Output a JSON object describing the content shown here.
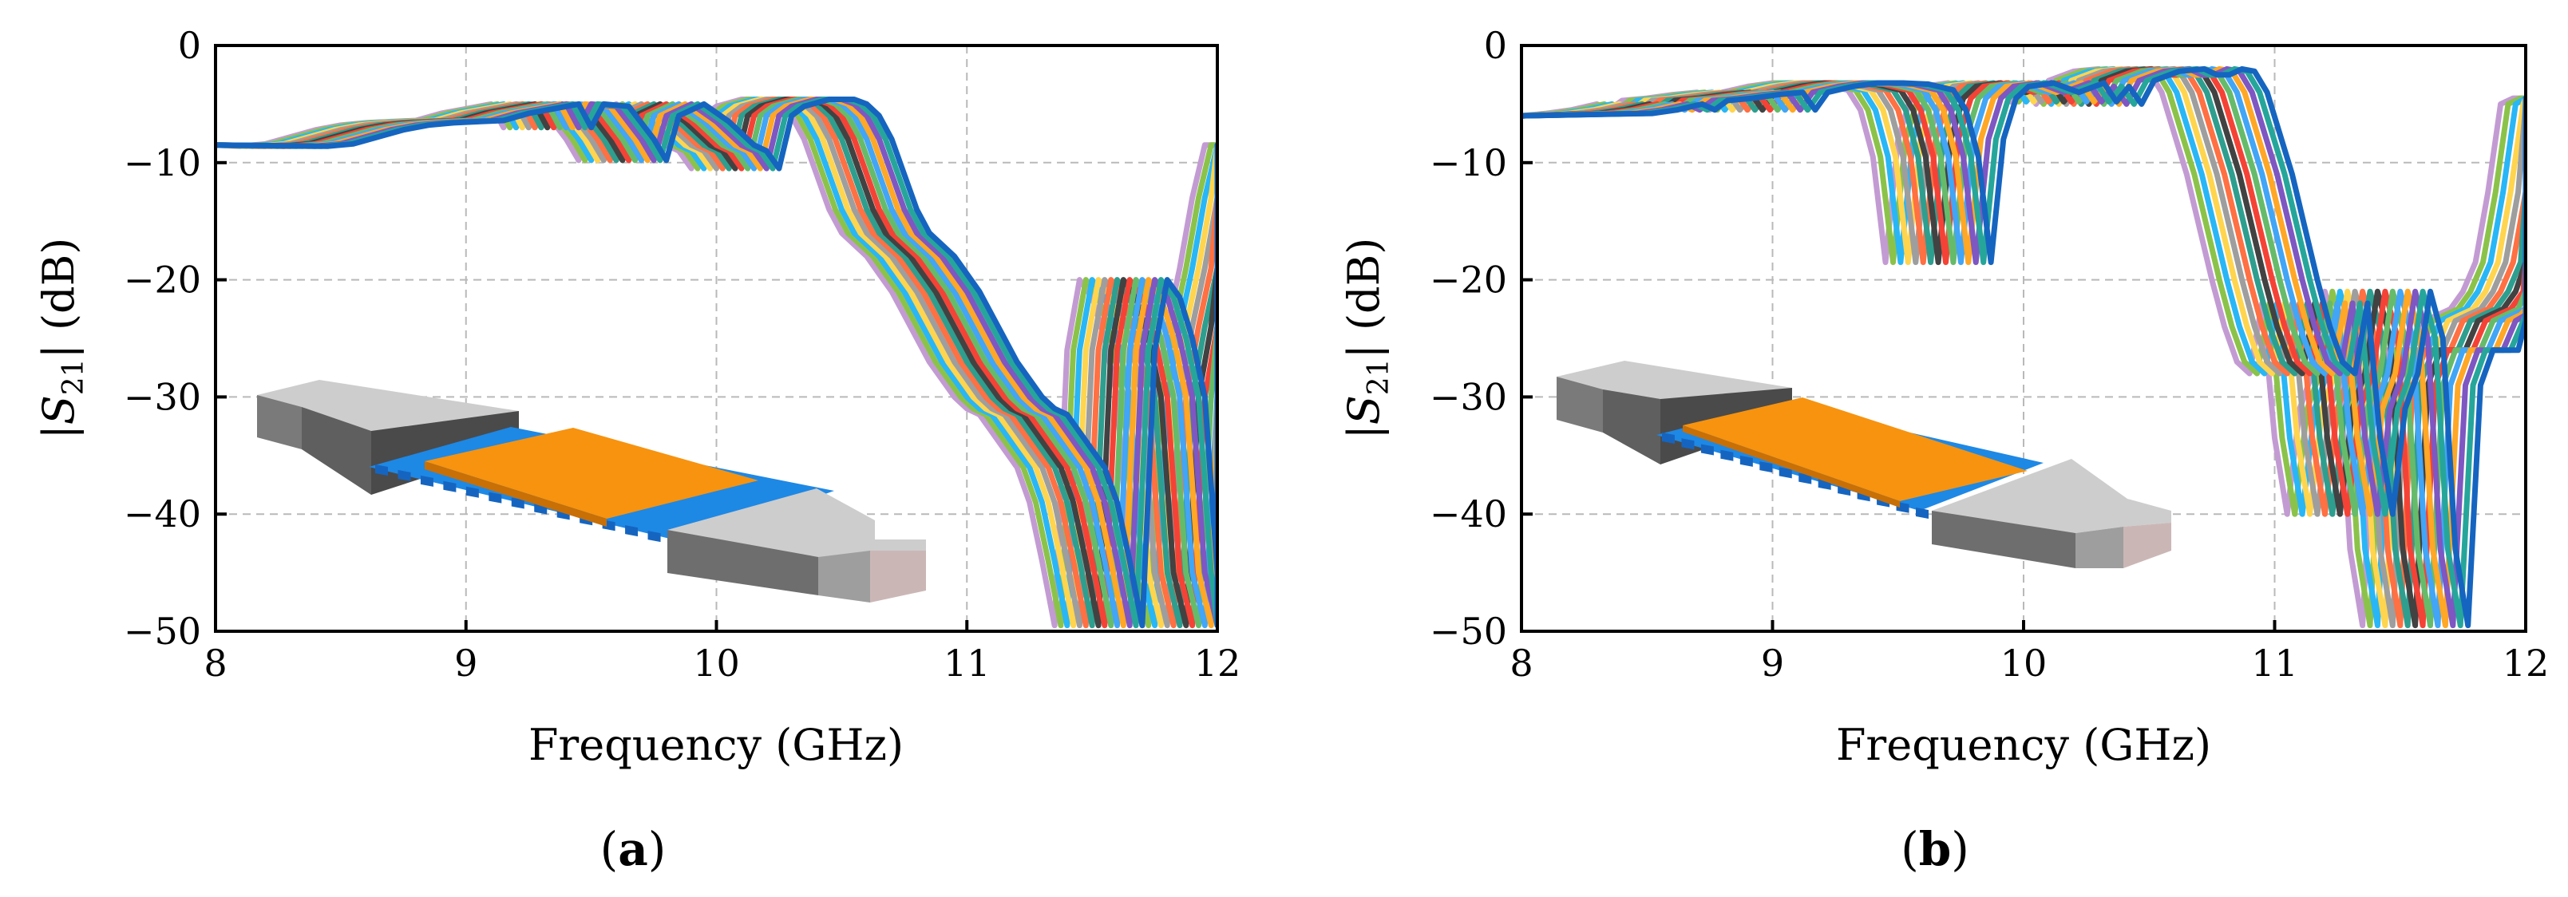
{
  "colors": [
    "#c39bd3",
    "#8bc34a",
    "#29b6f6",
    "#ffd54f",
    "#9e9e9e",
    "#ff7043",
    "#2e9e8f",
    "#424242",
    "#f44336",
    "#66bb6a",
    "#42a5f5",
    "#ffa726",
    "#7e57c2",
    "#26a69a",
    "#1565c0"
  ],
  "chart_data": [
    {
      "type": "line",
      "panel_label": "a",
      "xlabel": "Frequency (GHz)",
      "ylabel": "|S21| (dB)",
      "ylabel_parts": {
        "bar": "|",
        "symbol": "S",
        "sub": "21",
        "unit": " (dB)"
      },
      "xlim": [
        8,
        12
      ],
      "ylim": [
        -50,
        0
      ],
      "xticks": [
        "8",
        "9",
        "10",
        "11",
        "12"
      ],
      "yticks": [
        "0",
        "−10",
        "−20",
        "−30",
        "−40",
        "−50"
      ],
      "grid": true,
      "series_count": 15,
      "shift_per_series_GHz": 0.025,
      "base_curve": {
        "x": [
          8.0,
          8.1,
          8.2,
          8.3,
          8.4,
          8.5,
          8.6,
          8.7,
          8.8,
          8.9,
          9.0,
          9.1,
          9.15,
          9.2,
          9.3,
          9.4,
          9.45,
          9.5,
          9.6,
          9.7,
          9.8,
          9.85,
          9.9,
          9.95,
          10.0,
          10.1,
          10.2,
          10.25,
          10.3,
          10.35,
          10.4,
          10.45,
          10.5,
          10.55,
          10.6,
          10.65,
          10.7,
          10.75,
          10.8,
          10.85,
          10.9,
          10.95,
          11.0,
          11.05,
          11.1,
          11.15,
          11.2,
          11.25,
          11.3,
          11.35,
          11.4,
          11.45,
          11.5,
          11.55,
          11.6,
          11.65,
          11.7,
          11.75,
          11.8,
          11.85,
          11.9,
          11.95
        ],
        "y": [
          -8.5,
          -8.6,
          -8.4,
          -7.8,
          -7.2,
          -6.8,
          -6.6,
          -6.5,
          -6.4,
          -5.8,
          -5.4,
          -5.0,
          -7.0,
          -5.0,
          -5.2,
          -8.0,
          -9.8,
          -6.0,
          -5.0,
          -6.5,
          -8.5,
          -9.0,
          -10.5,
          -6.0,
          -5.2,
          -4.6,
          -4.6,
          -5.0,
          -6.0,
          -8.0,
          -11.0,
          -14.0,
          -16.0,
          -17.0,
          -18.0,
          -19.5,
          -21.0,
          -23.0,
          -25.0,
          -27.0,
          -28.5,
          -30.0,
          -31.0,
          -31.5,
          -33.0,
          -34.5,
          -36.0,
          -39.0,
          -44.0,
          -49.5,
          -26.0,
          -20.0,
          -21.5,
          -25.0,
          -30.0,
          -45.0,
          -49.5,
          -30.0,
          -24.0,
          -19.0,
          -13.0,
          -8.5
        ]
      },
      "inset_caption": ""
    },
    {
      "type": "line",
      "panel_label": "b",
      "xlabel": "Frequency (GHz)",
      "ylabel": "|S21| (dB)",
      "ylabel_parts": {
        "bar": "|",
        "symbol": "S",
        "sub": "21",
        "unit": " (dB)"
      },
      "xlim": [
        8,
        12
      ],
      "ylim": [
        -50,
        0
      ],
      "xticks": [
        "8",
        "9",
        "10",
        "11",
        "12"
      ],
      "yticks": [
        "0",
        "−10",
        "−20",
        "−30",
        "−40",
        "−50"
      ],
      "grid": true,
      "series_count": 15,
      "shift_per_series_GHz": 0.03,
      "base_curve": {
        "x": [
          8.0,
          8.1,
          8.2,
          8.3,
          8.35,
          8.4,
          8.5,
          8.6,
          8.7,
          8.75,
          8.8,
          8.9,
          9.0,
          9.1,
          9.2,
          9.3,
          9.35,
          9.4,
          9.45,
          9.5,
          9.55,
          9.6,
          9.7,
          9.8,
          9.9,
          9.95,
          10.0,
          10.05,
          10.1,
          10.2,
          10.3,
          10.35,
          10.4,
          10.45,
          10.5,
          10.55,
          10.6,
          10.65,
          10.7,
          10.75,
          10.8,
          10.85,
          10.9,
          10.95,
          11.0,
          11.05,
          11.1,
          11.15,
          11.2,
          11.25,
          11.3,
          11.35,
          11.4,
          11.45,
          11.5,
          11.55,
          11.6,
          11.65,
          11.7,
          11.75,
          11.8,
          11.85,
          11.9,
          11.95
        ],
        "y": [
          -6.0,
          -5.8,
          -5.5,
          -5.0,
          -5.5,
          -4.7,
          -4.5,
          -4.2,
          -4.0,
          -5.5,
          -4.0,
          -3.5,
          -3.2,
          -3.2,
          -3.3,
          -3.8,
          -5.5,
          -9.5,
          -18.5,
          -8.0,
          -4.5,
          -3.5,
          -3.2,
          -4.0,
          -3.2,
          -4.8,
          -3.5,
          -5.0,
          -3.0,
          -2.2,
          -2.0,
          -2.5,
          -2.5,
          -2.0,
          -2.2,
          -4.0,
          -7.5,
          -11.0,
          -15.5,
          -20.0,
          -24.0,
          -27.0,
          -28.0,
          -22.0,
          -33.5,
          -40.0,
          -31.0,
          -28.0,
          -21.0,
          -25.0,
          -43.0,
          -49.5,
          -29.0,
          -26.0,
          -26.0,
          -26.0,
          -23.5,
          -23.0,
          -22.5,
          -21.0,
          -18.5,
          -12.5,
          -5.0,
          -4.5
        ]
      },
      "inset_caption": ""
    }
  ]
}
